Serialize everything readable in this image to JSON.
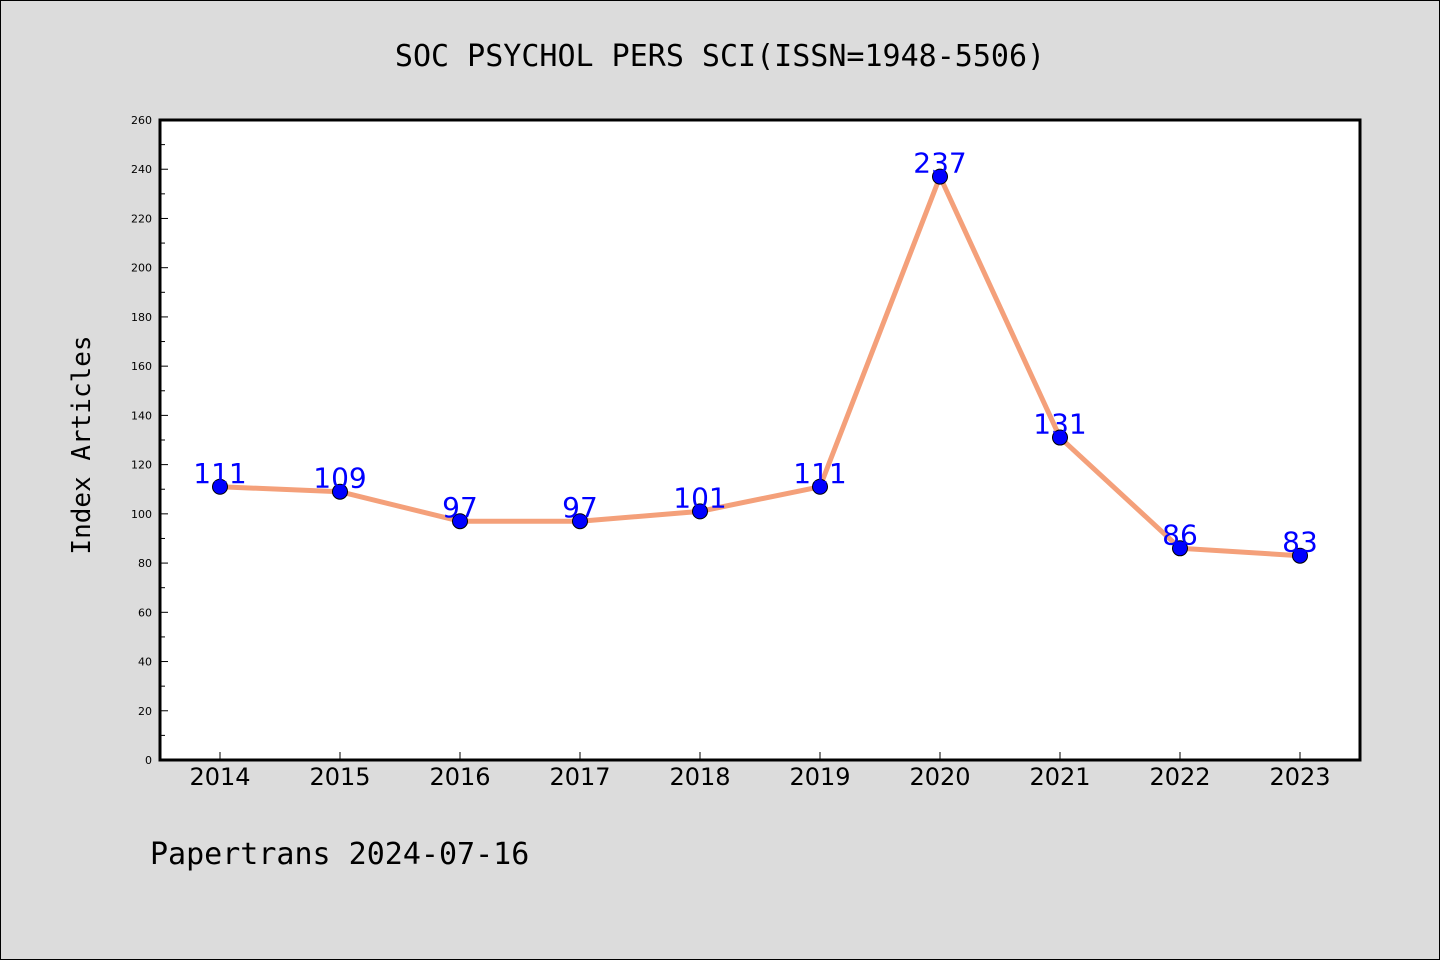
{
  "chart_data": {
    "type": "line",
    "title": "SOC PSYCHOL PERS SCI(ISSN=1948-5506)",
    "ylabel": "Index Articles",
    "xlabel": "",
    "footer": "Papertrans 2024-07-16",
    "categories": [
      "2014",
      "2015",
      "2016",
      "2017",
      "2018",
      "2019",
      "2020",
      "2021",
      "2022",
      "2023"
    ],
    "values": [
      111,
      109,
      97,
      97,
      101,
      111,
      237,
      131,
      86,
      83
    ],
    "ylim": [
      0,
      260
    ],
    "ytick_step": 20,
    "yticks": [
      "0",
      "20",
      "40",
      "60",
      "80",
      "100",
      "120",
      "140",
      "160",
      "180",
      "200",
      "220",
      "240",
      "260"
    ],
    "grid": false,
    "line_color": "#f4a07a",
    "marker_color": "#0000ff",
    "label_color": "#0000ff"
  }
}
